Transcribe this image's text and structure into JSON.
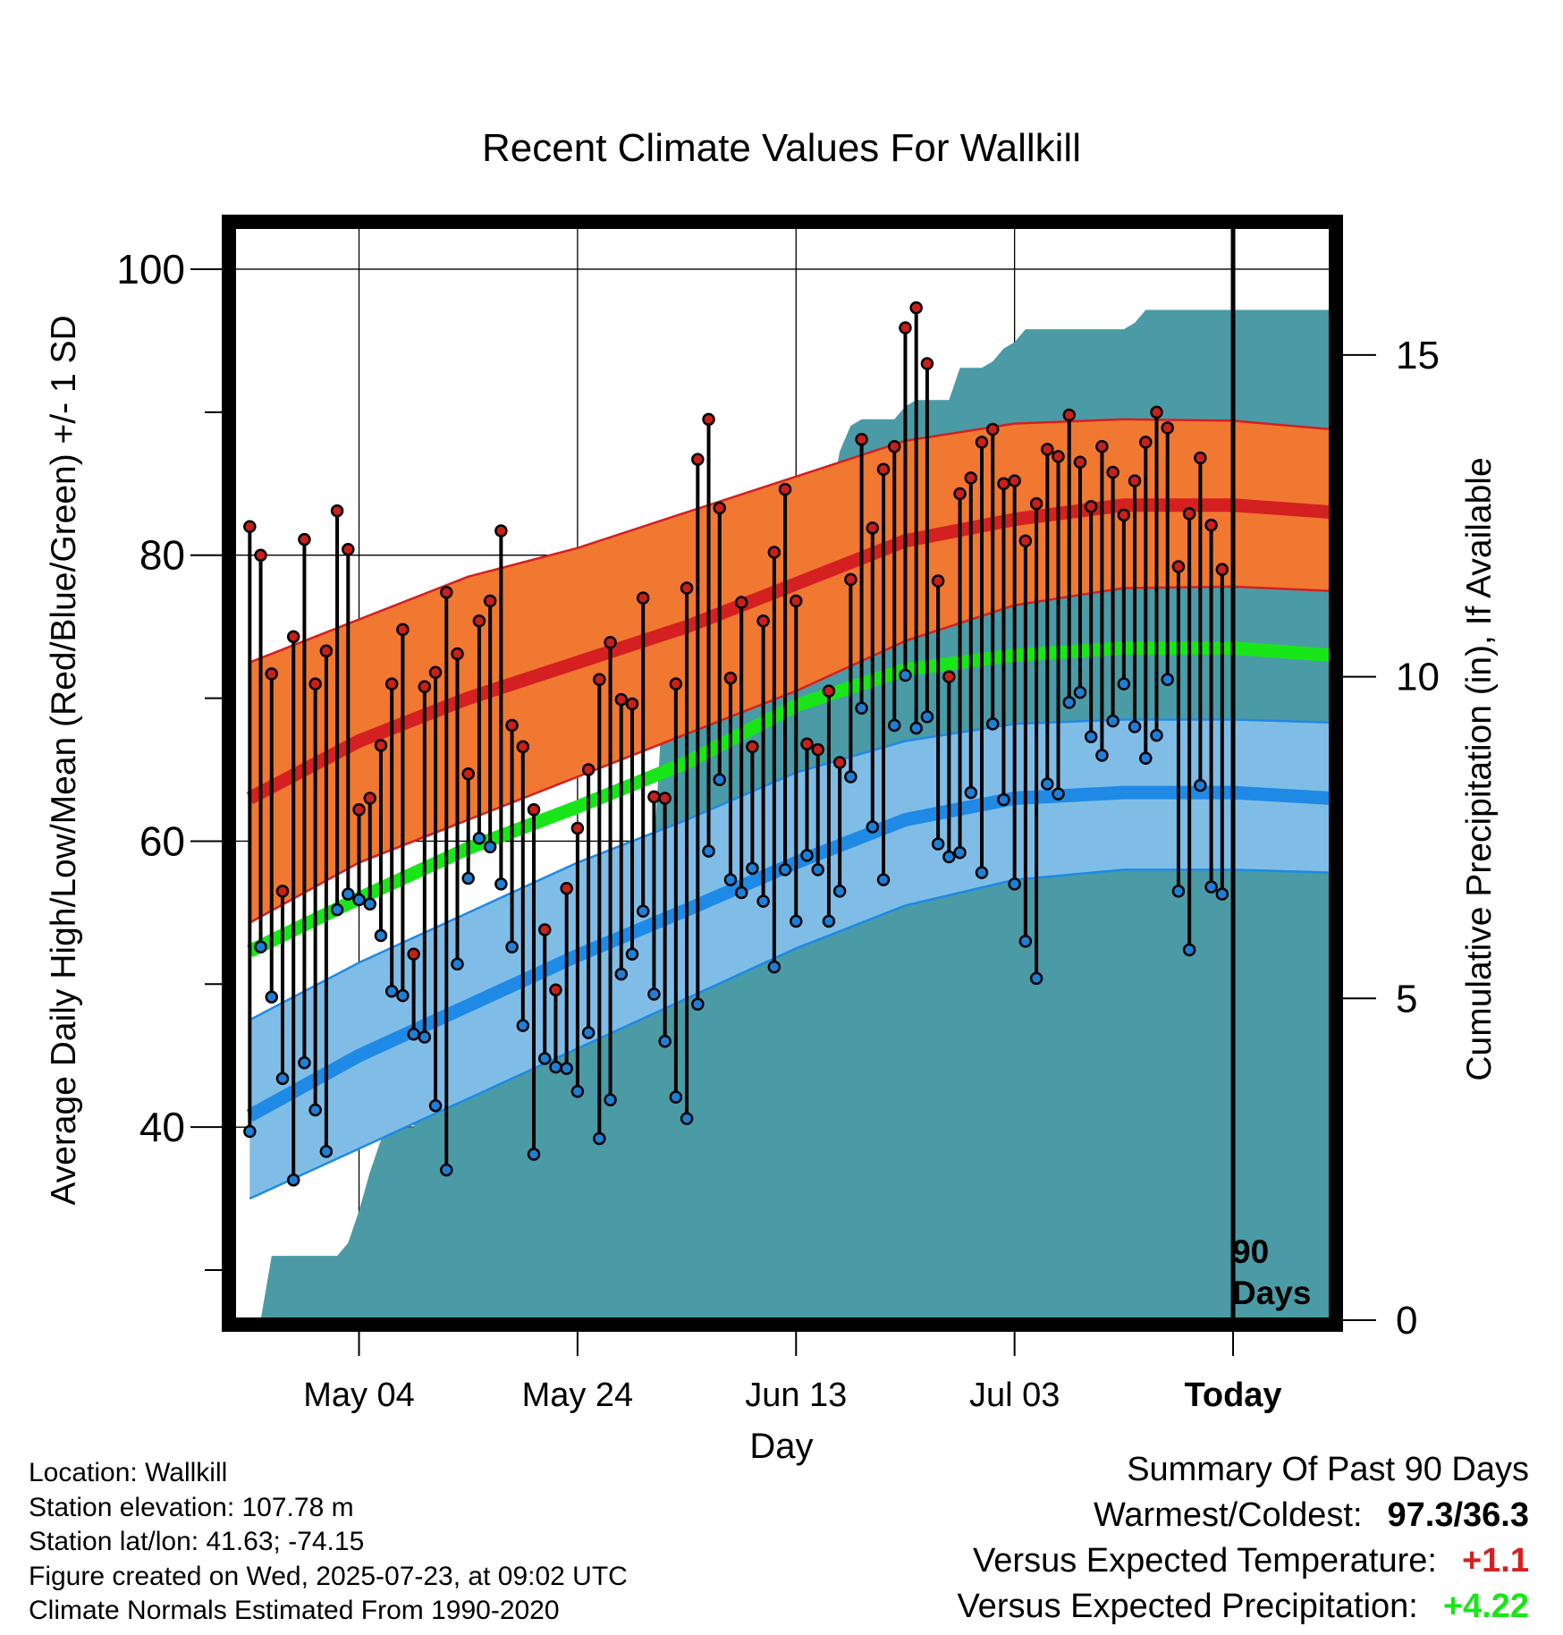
{
  "chart_data": {
    "type": "line",
    "title": "Recent Climate Values For Wallkill",
    "xlabel": "Day",
    "ylabel": "Average Daily High/Low/Mean (Red/Blue/Green) +/- 1 SD",
    "y2label": "Cumulative Precipitation (in), If Available",
    "x_tick_labels": [
      "May 04",
      "May 24",
      "Jun 13",
      "Jul 03",
      "Today"
    ],
    "x_tick_days": [
      -80,
      -60,
      -40,
      -20,
      0
    ],
    "xlim_days": [
      -91.5,
      9
    ],
    "ylim": [
      26.5,
      103
    ],
    "y_ticks": [
      40,
      60,
      80,
      100
    ],
    "y_minor_ticks": [
      30,
      50,
      70,
      90
    ],
    "y2lim": [
      0,
      17
    ],
    "y2_ticks": [
      0,
      5,
      10,
      15
    ],
    "grid": true,
    "today_marker": {
      "day": 0,
      "label_line1": "90",
      "label_line2": "Days"
    },
    "colors": {
      "high_band": "#f07830",
      "high_band_edge": "#d42020",
      "high_mean": "#d42020",
      "mean_line": "#19e619",
      "low_band": "#80bde6",
      "low_band_edge": "#1e8ae6",
      "low_mean": "#1e8ae6",
      "precip": "#4a9ba6",
      "high_dot": "#c8201a",
      "low_dot": "#1e7fd6"
    },
    "normals": {
      "days": [
        -90,
        -80,
        -70,
        -60,
        -50,
        -40,
        -30,
        -20,
        -10,
        0,
        9
      ],
      "normal_high": [
        63,
        67,
        70,
        72.5,
        75,
        78,
        81,
        82.5,
        83.5,
        83.5,
        83
      ],
      "normal_high_upper": [
        72.5,
        75.5,
        78.5,
        80.5,
        83,
        85.5,
        88,
        89.2,
        89.5,
        89.4,
        88.8
      ],
      "normal_high_lower": [
        54.3,
        58.5,
        61.5,
        64.5,
        67.5,
        70.5,
        74,
        76.5,
        77.7,
        77.8,
        77.5
      ],
      "normal_mean": [
        52.3,
        56,
        59.5,
        62.4,
        65.5,
        69.5,
        72,
        73,
        73.5,
        73.5,
        73
      ],
      "normal_low": [
        40.8,
        45,
        48.5,
        52,
        55.2,
        58.5,
        61.5,
        63,
        63.4,
        63.4,
        63
      ],
      "normal_low_upper": [
        47.5,
        51.5,
        55,
        58.5,
        61.5,
        64.8,
        67,
        68.2,
        68.5,
        68.5,
        68.3
      ],
      "normal_low_lower": [
        35,
        38.5,
        42,
        45.5,
        49,
        52.5,
        55.5,
        57.3,
        58,
        58,
        57.8
      ]
    },
    "series": [
      {
        "name": "High",
        "days": [
          -90,
          -89,
          -88,
          -87,
          -86,
          -85,
          -84,
          -83,
          -82,
          -81,
          -80,
          -79,
          -78,
          -77,
          -76,
          -75,
          -74,
          -73,
          -72,
          -71,
          -70,
          -69,
          -68,
          -67,
          -66,
          -65,
          -64,
          -63,
          -62,
          -61,
          -60,
          -59,
          -58,
          -57,
          -56,
          -55,
          -54,
          -53,
          -52,
          -51,
          -50,
          -49,
          -48,
          -47,
          -46,
          -45,
          -44,
          -43,
          -42,
          -41,
          -40,
          -39,
          -38,
          -37,
          -36,
          -35,
          -34,
          -33,
          -32,
          -31,
          -30,
          -29,
          -28,
          -27,
          -26,
          -25,
          -24,
          -23,
          -22,
          -21,
          -20,
          -19,
          -18,
          -17,
          -16,
          -15,
          -14,
          -13,
          -12,
          -11,
          -10,
          -9,
          -8,
          -7,
          -6,
          -5,
          -4,
          -3,
          -2,
          -1
        ],
        "values": [
          82,
          80,
          71.7,
          56.5,
          74.3,
          81.1,
          71,
          73.3,
          83.1,
          80.4,
          62.2,
          63,
          66.7,
          71,
          74.8,
          52.1,
          70.8,
          71.8,
          77.4,
          73.1,
          64.7,
          75.4,
          76.8,
          81.7,
          68.1,
          66.6,
          62.2,
          53.8,
          49.6,
          56.7,
          60.9,
          65,
          71.3,
          73.9,
          69.9,
          69.6,
          77,
          63.1,
          63,
          71,
          77.7,
          86.7,
          89.5,
          83.3,
          71.4,
          76.7,
          66.6,
          75.4,
          80.2,
          84.6,
          76.8,
          66.8,
          66.4,
          70.5,
          65.5,
          78.3,
          88.1,
          81.9,
          86,
          87.6,
          95.9,
          97.3,
          93.4,
          78.2,
          71.5,
          84.3,
          85.4,
          87.9,
          88.8,
          85,
          85.2,
          81,
          83.6,
          87.4,
          86.9,
          89.8,
          86.5,
          83.4,
          87.6,
          85.8,
          82.8,
          85.2,
          87.9,
          90,
          88.9,
          79.2,
          82.9,
          86.8,
          82.1,
          79
        ]
      },
      {
        "name": "Low",
        "days": [
          -90,
          -89,
          -88,
          -87,
          -86,
          -85,
          -84,
          -83,
          -82,
          -81,
          -80,
          -79,
          -78,
          -77,
          -76,
          -75,
          -74,
          -73,
          -72,
          -71,
          -70,
          -69,
          -68,
          -67,
          -66,
          -65,
          -64,
          -63,
          -62,
          -61,
          -60,
          -59,
          -58,
          -57,
          -56,
          -55,
          -54,
          -53,
          -52,
          -51,
          -50,
          -49,
          -48,
          -47,
          -46,
          -45,
          -44,
          -43,
          -42,
          -41,
          -40,
          -39,
          -38,
          -37,
          -36,
          -35,
          -34,
          -33,
          -32,
          -31,
          -30,
          -29,
          -28,
          -27,
          -26,
          -25,
          -24,
          -23,
          -22,
          -21,
          -20,
          -19,
          -18,
          -17,
          -16,
          -15,
          -14,
          -13,
          -12,
          -11,
          -10,
          -9,
          -8,
          -7,
          -6,
          -5,
          -4,
          -3,
          -2,
          -1
        ],
        "values": [
          39.7,
          52.6,
          49.1,
          43.4,
          36.3,
          44.5,
          41.2,
          38.3,
          55.2,
          56.3,
          55.9,
          55.6,
          53.4,
          49.5,
          49.2,
          46.5,
          46.3,
          41.5,
          37,
          51.4,
          57.4,
          60.2,
          59.6,
          57,
          52.6,
          47.1,
          38.1,
          44.8,
          44.2,
          44.1,
          42.5,
          46.6,
          39.2,
          41.9,
          50.7,
          52.1,
          55.1,
          49.3,
          46,
          42.1,
          40.6,
          48.6,
          59.3,
          64.3,
          57.3,
          56.4,
          58.1,
          55.8,
          51.2,
          58,
          54.4,
          59,
          58,
          54.4,
          56.5,
          64.5,
          69.3,
          61,
          57.3,
          68.1,
          71.6,
          67.9,
          68.7,
          59.8,
          58.9,
          59.2,
          63.4,
          57.8,
          68.2,
          62.9,
          57,
          53,
          50.4,
          64,
          63.3,
          69.7,
          70.4,
          67.3,
          66,
          68.4,
          71,
          68,
          65.8,
          67.4,
          71.3,
          56.5,
          52.4,
          63.9,
          56.8,
          56.3
        ]
      }
    ],
    "precip": {
      "days": [
        -90,
        -89,
        -88,
        -83,
        -82,
        -81,
        -80,
        -79,
        -78,
        -77,
        -76,
        -75,
        -74,
        -73,
        -72,
        -71,
        -70,
        -69,
        -67,
        -66,
        -65,
        -64,
        -63,
        -62,
        -61,
        -60,
        -59,
        -58,
        -57,
        -56,
        -55,
        -54,
        -53,
        -52,
        -51,
        -50,
        -49,
        -48,
        -47,
        -46,
        -45,
        -44,
        -43,
        -42,
        -41,
        -40,
        -39,
        -38,
        -37,
        -36,
        -35,
        -34,
        -33,
        -32,
        -31,
        -30,
        -29,
        -28,
        -27,
        -26,
        -25,
        -24,
        -23,
        -22,
        -21,
        -20,
        -19,
        -18,
        -17,
        -16,
        -15,
        -14,
        -13,
        -12,
        -11,
        -10,
        -9,
        -8,
        -7,
        -6,
        -5,
        -4,
        -3,
        -2,
        -1,
        0,
        9
      ],
      "values": [
        0,
        0,
        1,
        1,
        1,
        1.2,
        1.7,
        2.3,
        2.8,
        3,
        3,
        3,
        5.2,
        5.6,
        5.6,
        5.6,
        5.8,
        6.3,
        6.3,
        6.3,
        6.3,
        6.3,
        6.3,
        6.7,
        7,
        7.1,
        7.1,
        7.1,
        7.1,
        7.2,
        7.2,
        7.3,
        7.3,
        10.2,
        10.2,
        10.2,
        10.2,
        10.3,
        10.5,
        11.4,
        11.5,
        11.8,
        12.2,
        12.5,
        12.5,
        12.5,
        12.5,
        12.6,
        12.6,
        13.5,
        13.9,
        14,
        14,
        14,
        14,
        14.2,
        14.3,
        14.3,
        14.3,
        14.3,
        14.8,
        14.8,
        14.8,
        14.9,
        15.1,
        15.2,
        15.4,
        15.4,
        15.4,
        15.4,
        15.4,
        15.4,
        15.4,
        15.4,
        15.4,
        15.4,
        15.5,
        15.7,
        15.7,
        15.7,
        15.7,
        15.7,
        15.7,
        15.7,
        15.7,
        15.7,
        15.7
      ]
    }
  },
  "info": {
    "location": "Location: Wallkill",
    "elevation": "Station elevation: 107.78 m",
    "latlon": "Station lat/lon: 41.63; -74.15",
    "created": "Figure created on Wed, 2025-07-23, at 09:02 UTC",
    "normals": "Climate Normals Estimated From 1990-2020"
  },
  "summary": {
    "heading": "Summary Of Past 90 Days",
    "warmest_label": "Warmest/Coldest:",
    "warmest_value": "97.3/36.3",
    "temp_label": "Versus Expected Temperature:",
    "temp_value": "+1.1",
    "temp_color": "#d42020",
    "precip_label": "Versus Expected Precipitation:",
    "precip_value": "+4.22",
    "precip_color": "#19e619"
  }
}
